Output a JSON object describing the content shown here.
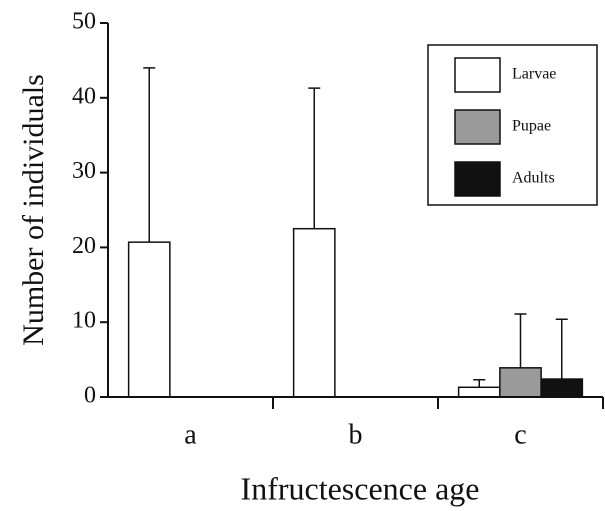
{
  "chart_data": {
    "type": "bar",
    "x_label": "Infructescence age",
    "y_label": "Number of individuals",
    "categories": [
      "a",
      "b",
      "c"
    ],
    "series": [
      {
        "name": "Larvae",
        "color": "#ffffff",
        "values": [
          20.7,
          22.5,
          1.3
        ],
        "errors": [
          23.3,
          18.8,
          1.0
        ]
      },
      {
        "name": "Pupae",
        "color": "#9a9a9a",
        "values": [
          0,
          0,
          3.9
        ],
        "errors": [
          null,
          null,
          7.2
        ]
      },
      {
        "name": "Adults",
        "color": "#111111",
        "values": [
          0,
          0,
          2.4
        ],
        "errors": [
          null,
          null,
          8.0
        ]
      }
    ],
    "ylim": [
      0,
      50
    ],
    "yticks": [
      0,
      10,
      20,
      30,
      40,
      50
    ],
    "legend": "upper right"
  }
}
